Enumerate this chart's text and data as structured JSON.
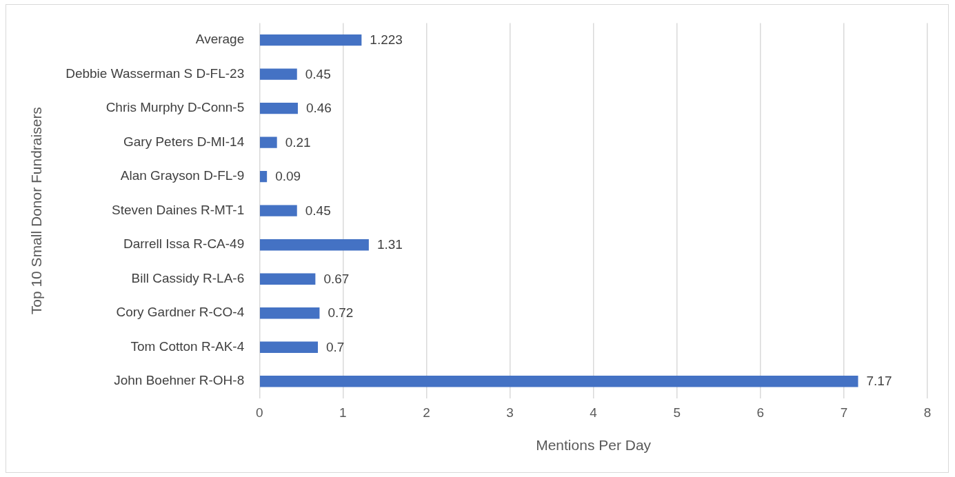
{
  "chart_data": {
    "type": "bar",
    "orientation": "horizontal",
    "xlabel": "Mentions Per Day",
    "ylabel": "Top 10 Small Donor Fundraisers",
    "categories": [
      "Average",
      "Debbie Wasserman S D-FL-23",
      "Chris Murphy D-Conn-5",
      "Gary Peters D-MI-14",
      "Alan Grayson D-FL-9",
      "Steven Daines R-MT-1",
      "Darrell Issa R-CA-49",
      "Bill Cassidy R-LA-6",
      "Cory Gardner R-CO-4",
      "Tom Cotton R-AK-4",
      "John Boehner R-OH-8"
    ],
    "values": [
      1.223,
      0.45,
      0.46,
      0.21,
      0.09,
      0.45,
      1.31,
      0.67,
      0.72,
      0.7,
      7.17
    ],
    "color": "#4472c4",
    "xlim": [
      0,
      8
    ],
    "xticks": [
      0,
      1,
      2,
      3,
      4,
      5,
      6,
      7,
      8
    ],
    "grid": "x",
    "data_labels": true,
    "legend": false
  }
}
